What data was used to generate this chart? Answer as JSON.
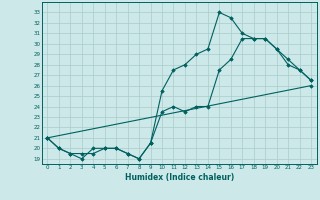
{
  "xlabel": "Humidex (Indice chaleur)",
  "bg_color": "#cce8e8",
  "grid_color": "#aacccc",
  "line_color": "#006060",
  "xlim": [
    -0.5,
    23.5
  ],
  "ylim": [
    18.5,
    34.0
  ],
  "xticks": [
    0,
    1,
    2,
    3,
    4,
    5,
    6,
    7,
    8,
    9,
    10,
    11,
    12,
    13,
    14,
    15,
    16,
    17,
    18,
    19,
    20,
    21,
    22,
    23
  ],
  "yticks": [
    19,
    20,
    21,
    22,
    23,
    24,
    25,
    26,
    27,
    28,
    29,
    30,
    31,
    32,
    33
  ],
  "line1_x": [
    0,
    1,
    2,
    3,
    4,
    5,
    6,
    7,
    8,
    9,
    10,
    11,
    12,
    13,
    14,
    15,
    16,
    17,
    18,
    19,
    20,
    21,
    22,
    23
  ],
  "line1_y": [
    21.0,
    20.0,
    19.5,
    19.0,
    20.0,
    20.0,
    20.0,
    19.5,
    19.0,
    20.5,
    25.5,
    27.5,
    28.0,
    29.0,
    29.5,
    33.0,
    32.5,
    31.0,
    30.5,
    30.5,
    29.5,
    28.0,
    27.5,
    26.5
  ],
  "line2_x": [
    0,
    1,
    2,
    3,
    4,
    5,
    6,
    7,
    8,
    9,
    10,
    11,
    12,
    13,
    14,
    15,
    16,
    17,
    18,
    19,
    20,
    21,
    22,
    23
  ],
  "line2_y": [
    21.0,
    20.0,
    19.5,
    19.5,
    19.5,
    20.0,
    20.0,
    19.5,
    19.0,
    20.5,
    23.5,
    24.0,
    23.5,
    24.0,
    24.0,
    27.5,
    28.5,
    30.5,
    30.5,
    30.5,
    29.5,
    28.5,
    27.5,
    26.5
  ],
  "line3_x": [
    0,
    23
  ],
  "line3_y": [
    21.0,
    26.0
  ]
}
